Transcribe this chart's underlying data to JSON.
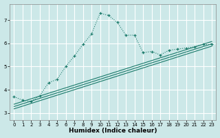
{
  "title": "",
  "xlabel": "Humidex (Indice chaleur)",
  "bg_color": "#cce8e8",
  "grid_color": "#ffffff",
  "line_color": "#1a7a6a",
  "xlim": [
    -0.5,
    23.5
  ],
  "ylim": [
    2.7,
    7.7
  ],
  "xticks": [
    0,
    1,
    2,
    3,
    4,
    5,
    6,
    7,
    8,
    9,
    10,
    11,
    12,
    13,
    14,
    15,
    16,
    17,
    18,
    19,
    20,
    21,
    22,
    23
  ],
  "yticks": [
    3,
    4,
    5,
    6,
    7
  ],
  "curve_x": [
    0,
    1,
    2,
    3,
    4,
    5,
    6,
    7,
    8,
    9,
    10,
    11,
    12,
    13,
    14,
    15,
    16,
    17,
    18,
    19,
    20,
    21,
    22,
    23
  ],
  "curve_y": [
    3.7,
    3.55,
    3.5,
    3.75,
    4.3,
    4.45,
    5.0,
    5.45,
    5.95,
    6.4,
    7.3,
    7.2,
    6.9,
    6.35,
    6.35,
    5.6,
    5.65,
    5.5,
    5.7,
    5.75,
    5.8,
    5.85,
    5.95,
    5.95
  ],
  "line1_x": [
    0,
    23
  ],
  "line1_y": [
    3.38,
    6.08
  ],
  "line2_x": [
    0,
    23
  ],
  "line2_y": [
    3.28,
    5.98
  ],
  "line3_x": [
    0,
    23
  ],
  "line3_y": [
    3.18,
    5.88
  ],
  "xlabel_fontsize": 6.5,
  "xlabel_bold": true,
  "tick_fontsize": 5.0,
  "linewidth": 0.8,
  "marker_size": 3.5
}
